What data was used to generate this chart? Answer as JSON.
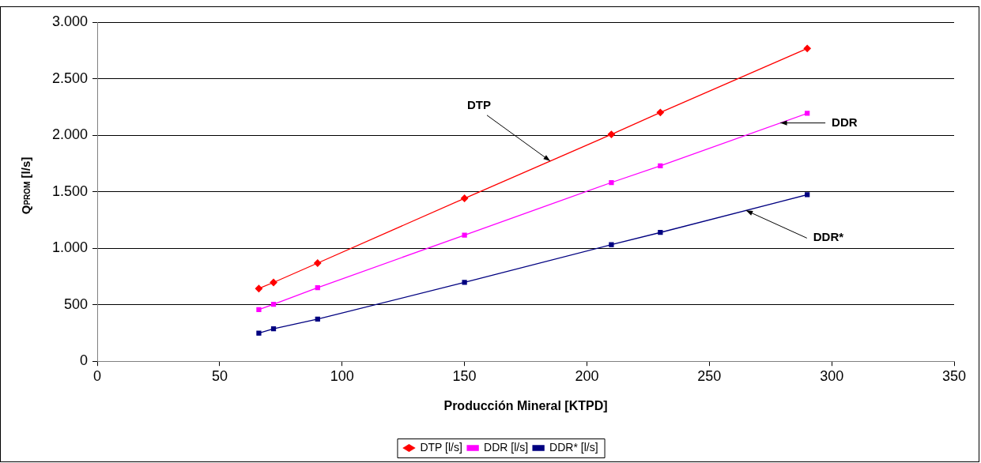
{
  "chart_data": {
    "type": "line",
    "xlabel": "Producción Mineral [KTPD]",
    "ylabel": "Q$_{PROM}$ [l/s]",
    "x": [
      66,
      72,
      90,
      150,
      210,
      230,
      290
    ],
    "series": [
      {
        "name": "DTP [l/s]",
        "color": "#ff0000",
        "marker": "diamond",
        "values": [
          643,
          697,
          868,
          1441,
          2007,
          2201,
          2767
        ]
      },
      {
        "name": "DDR [l/s]",
        "color": "#ff00ff",
        "marker": "square",
        "values": [
          457,
          504,
          651,
          1116,
          1581,
          1728,
          2193
        ]
      },
      {
        "name": "DDR* [l/s]",
        "color": "#000080",
        "marker": "square",
        "values": [
          248,
          287,
          372,
          697,
          1031,
          1139,
          1473
        ]
      }
    ],
    "xlim": [
      0,
      350
    ],
    "xticks": [
      0,
      50,
      100,
      150,
      200,
      250,
      300,
      350
    ],
    "ylim": [
      0,
      3000
    ],
    "yticks": [
      0,
      {
        "value": 500,
        "label": "500"
      },
      {
        "value": 1000,
        "label": "1.000"
      },
      {
        "value": 1500,
        "label": "1.500"
      },
      {
        "value": 2000,
        "label": "2.000"
      },
      {
        "value": 2500,
        "label": "2.500"
      },
      {
        "value": 3000,
        "label": "3.000"
      }
    ],
    "grid": "y",
    "legend": "bottom",
    "line_style": "solid",
    "annotations": [
      {
        "text": "DTP",
        "x": 185,
        "y": 1771
      },
      {
        "text": "DDR",
        "x": 279,
        "y": 2108
      },
      {
        "text": "DDR*",
        "x": 265,
        "y": 1334
      }
    ]
  }
}
